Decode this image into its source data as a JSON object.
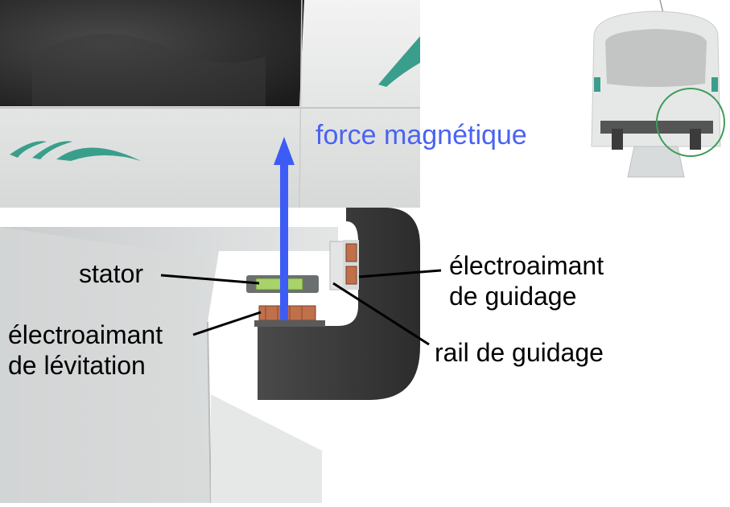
{
  "labels": {
    "force": "force magnétique",
    "stator": "stator",
    "levitation_line1": "électroaimant",
    "levitation_line2": "de lévitation",
    "guidance_line1": "électroaimant",
    "guidance_line2": "de guidage",
    "guide_rail": "rail de guidage"
  },
  "colors": {
    "force_arrow": "#3d5cf5",
    "force_text": "#4a63f2",
    "vehicle_body": "#e8eae9",
    "window": "#2a2a2a",
    "accent_stripe": "#3a9e8c",
    "magnet_arm": "#3b3b3b",
    "coil": "#c0704a",
    "stator": "#a9d36a",
    "detail_circle": "#3f9b5a"
  }
}
